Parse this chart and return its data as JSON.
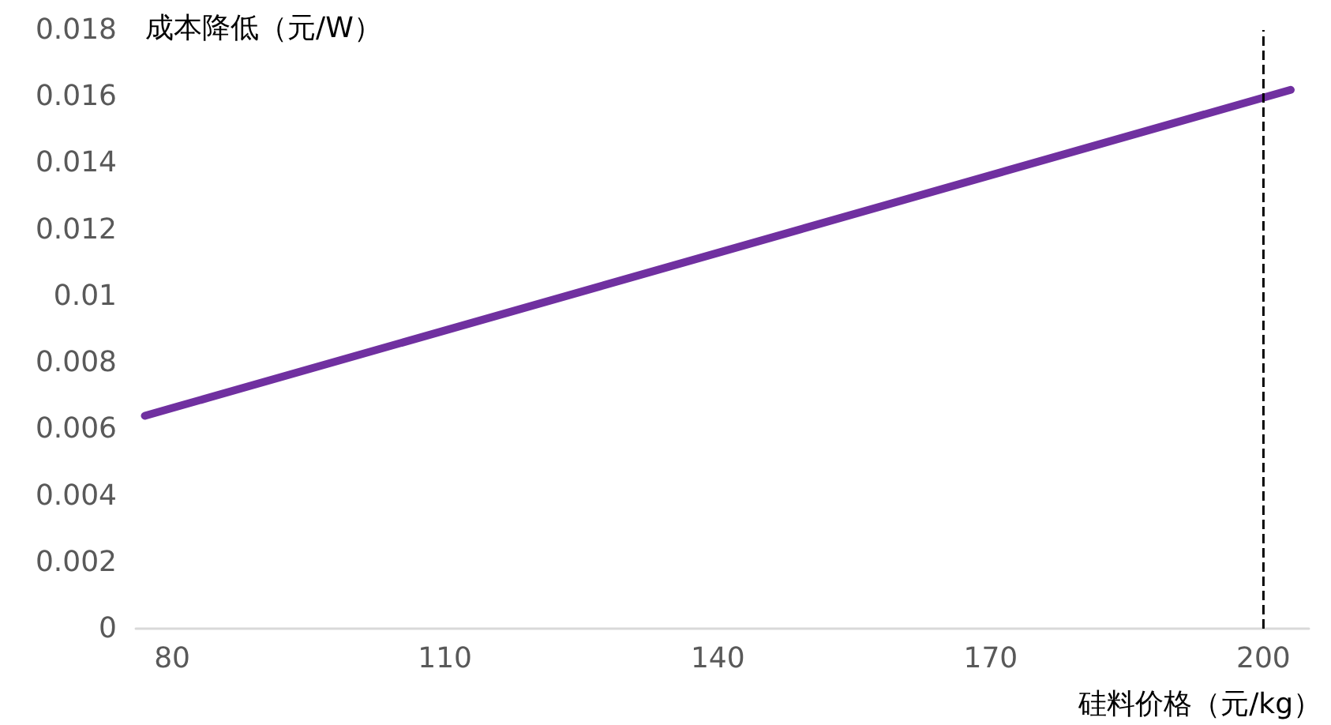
{
  "chart_data": {
    "type": "line",
    "xlabel": "硅料价格（元/kg）",
    "ylabel": "成本降低（元/W）",
    "x": [
      77,
      203
    ],
    "series": [
      {
        "color": "#7030a0",
        "values": [
          0.0064,
          0.0162
        ]
      }
    ],
    "xlim": [
      76,
      205
    ],
    "xticks": [
      80,
      110,
      140,
      170,
      200
    ],
    "ylim": [
      0,
      0.018
    ],
    "yticks": [
      0,
      0.002,
      0.004,
      0.006,
      0.008,
      0.01,
      0.012,
      0.014,
      0.016,
      0.018
    ],
    "grid": false,
    "marker": "none",
    "line_style": "solid",
    "ref_lines": [
      {
        "axis": "x",
        "value": 200,
        "label": null,
        "color": "#000000",
        "line_style": "dashed"
      }
    ]
  }
}
